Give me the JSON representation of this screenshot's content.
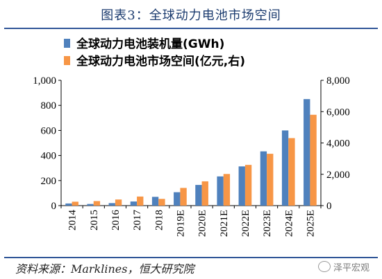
{
  "figure": {
    "title": "图表3：全球动力电池市场空间",
    "source": "资料来源：Marklines，恒大研究院",
    "watermark": "泽平宏观"
  },
  "colors": {
    "series1": "#4f81bd",
    "series2": "#f79646",
    "rule": "#2f5597"
  },
  "chart_data": {
    "type": "bar",
    "categories": [
      "2014",
      "2015",
      "2016",
      "2017",
      "2018",
      "2019E",
      "2020E",
      "2021E",
      "2022E",
      "2023E",
      "2024E",
      "2025E"
    ],
    "series": [
      {
        "name": "全球动力电池装机量(GWh)",
        "axis": "left",
        "values": [
          17,
          13,
          20,
          33,
          70,
          107,
          165,
          233,
          313,
          433,
          600,
          850
        ]
      },
      {
        "name": "全球动力电池市场空间(亿元,右)",
        "axis": "right",
        "values": [
          250,
          290,
          390,
          580,
          430,
          1130,
          1550,
          2020,
          2600,
          3310,
          4310,
          5800
        ]
      }
    ],
    "ylim_left": [
      0,
      1000
    ],
    "yticks_left": [
      "0",
      "200",
      "400",
      "600",
      "800",
      "1,000"
    ],
    "ylim_right": [
      0,
      8000
    ],
    "yticks_right": [
      "0",
      "2,000",
      "4,000",
      "6,000",
      "8,000"
    ],
    "legend_position": "top-left",
    "grid": false
  }
}
